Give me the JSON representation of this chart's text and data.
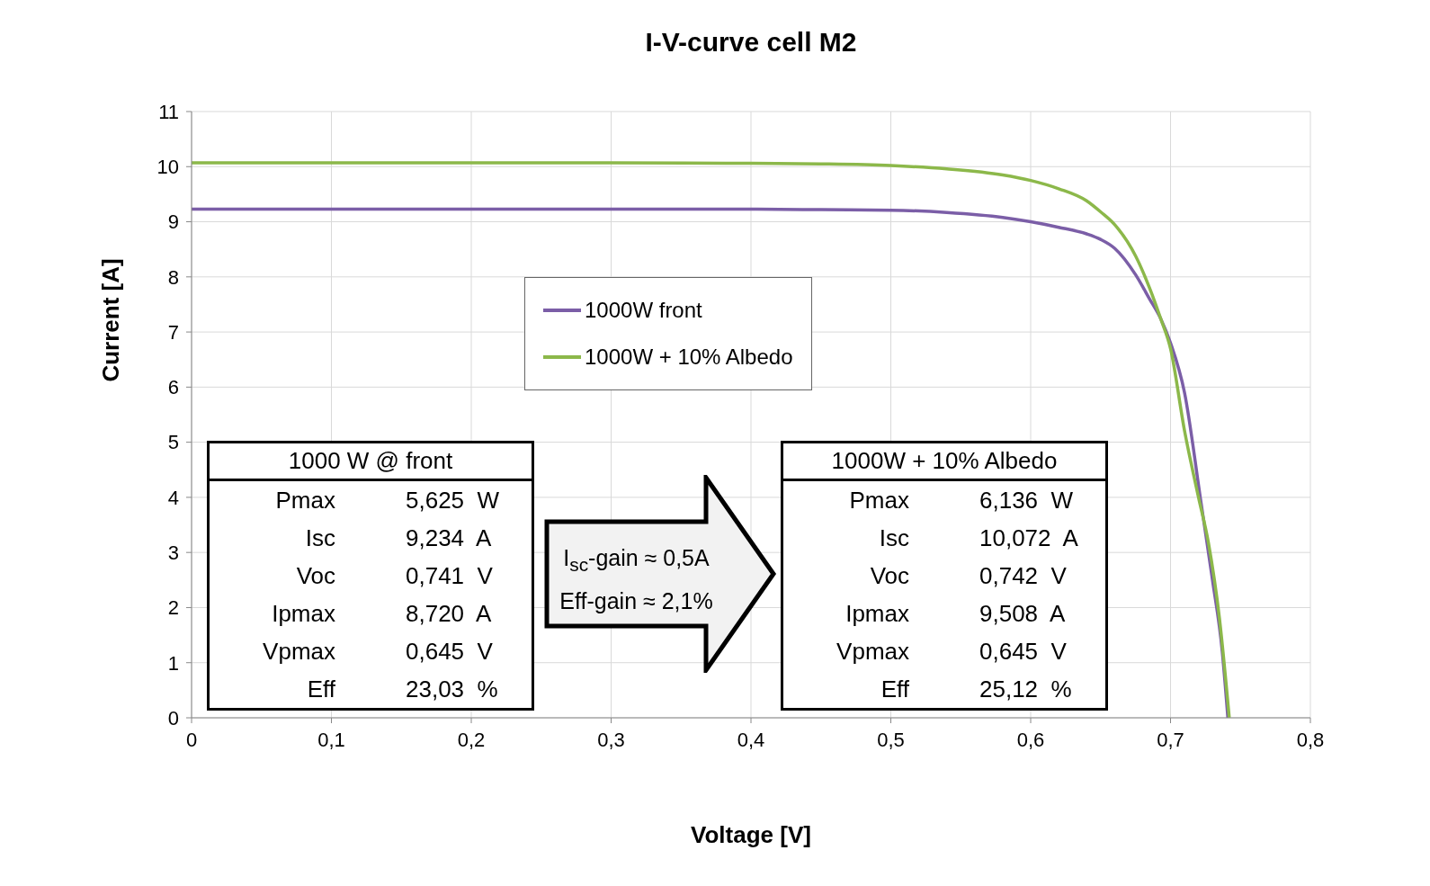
{
  "chart_data": {
    "type": "line",
    "title": "I-V-curve cell M2",
    "xlabel": "Voltage [V]",
    "ylabel": "Current [A]",
    "xlim": [
      0,
      0.8
    ],
    "xticks": [
      {
        "value": 0,
        "label": "0"
      },
      {
        "value": 0.1,
        "label": "0,1"
      },
      {
        "value": 0.2,
        "label": "0,2"
      },
      {
        "value": 0.3,
        "label": "0,3"
      },
      {
        "value": 0.4,
        "label": "0,4"
      },
      {
        "value": 0.5,
        "label": "0,5"
      },
      {
        "value": 0.6,
        "label": "0,6"
      },
      {
        "value": 0.7,
        "label": "0,7"
      },
      {
        "value": 0.8,
        "label": "0,8"
      }
    ],
    "ylim": [
      0,
      11
    ],
    "yticks": [
      0,
      1,
      2,
      3,
      4,
      5,
      6,
      7,
      8,
      9,
      10,
      11
    ],
    "grid": true,
    "legend": "top center",
    "marker": "none",
    "line_style": "solid",
    "series": [
      {
        "name": "1000W front",
        "color": "#7b5ea7",
        "x": [
          0,
          0.1,
          0.2,
          0.3,
          0.4,
          0.45,
          0.5,
          0.54,
          0.58,
          0.6,
          0.62,
          0.64,
          0.65,
          0.66,
          0.675,
          0.685,
          0.693,
          0.7,
          0.71,
          0.722,
          0.73,
          0.737,
          0.741
        ],
        "values": [
          9.23,
          9.23,
          9.23,
          9.23,
          9.23,
          9.22,
          9.21,
          9.17,
          9.08,
          9.0,
          8.9,
          8.78,
          8.68,
          8.52,
          8.04,
          7.6,
          7.24,
          6.8,
          5.9,
          3.87,
          2.5,
          1.2,
          0
        ]
      },
      {
        "name": "1000W + 10% Albedo",
        "color": "#8cb84a",
        "x": [
          0,
          0.1,
          0.2,
          0.3,
          0.4,
          0.45,
          0.5,
          0.54,
          0.58,
          0.6,
          0.62,
          0.64,
          0.65,
          0.66,
          0.675,
          0.685,
          0.693,
          0.7,
          0.71,
          0.72,
          0.727,
          0.735,
          0.742
        ],
        "values": [
          10.07,
          10.07,
          10.07,
          10.07,
          10.06,
          10.05,
          10.02,
          9.96,
          9.85,
          9.75,
          9.6,
          9.38,
          9.18,
          8.95,
          8.38,
          7.8,
          7.24,
          6.7,
          5.21,
          4.0,
          3.19,
          1.8,
          0
        ]
      }
    ],
    "annotations": [
      "1000 W @ front",
      "Pmax",
      "5,625  W",
      "Isc",
      "9,234  A",
      "Voc",
      "0,741  V",
      "Ipmax",
      "8,720  A",
      "Vpmax",
      "0,645  V",
      "Eff",
      "23,03  %",
      "1000W + 10% Albedo",
      "Pmax",
      "6,136  W",
      "Isc",
      "10,072  A",
      "Voc",
      "0,742  V",
      "Ipmax",
      "9,508  A",
      "Vpmax",
      "0,645  V",
      "Eff",
      "25,12  %",
      "I$_{sc}$-gain ≈ 0,5A",
      "Eff-gain ≈ 2,1%"
    ]
  }
}
